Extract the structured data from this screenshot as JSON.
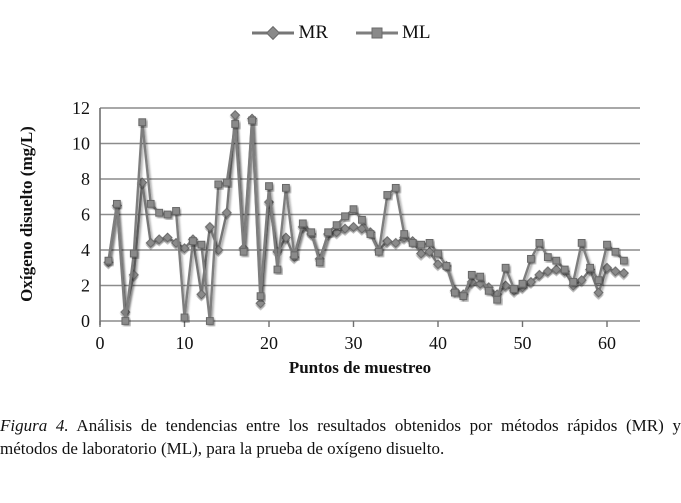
{
  "chart_data": {
    "type": "line",
    "title": "",
    "xlabel": "Puntos de muestreo",
    "ylabel": "Oxígeno disuelto (mg/L)",
    "x_ticks": [
      0,
      10,
      20,
      30,
      40,
      50,
      60
    ],
    "y_ticks": [
      0,
      2,
      4,
      6,
      8,
      10,
      12
    ],
    "ylim": [
      0,
      12
    ],
    "xlim": [
      0,
      64
    ],
    "grid": "horizontal",
    "legend_position": "top-center",
    "x": [
      1,
      2,
      3,
      4,
      5,
      6,
      7,
      8,
      9,
      10,
      11,
      12,
      13,
      14,
      15,
      16,
      17,
      18,
      19,
      20,
      21,
      22,
      23,
      24,
      25,
      26,
      27,
      28,
      29,
      30,
      31,
      32,
      33,
      34,
      35,
      36,
      37,
      38,
      39,
      40,
      41,
      42,
      43,
      44,
      45,
      46,
      47,
      48,
      49,
      50,
      51,
      52,
      53,
      54,
      55,
      56,
      57,
      58,
      59,
      60,
      61,
      62
    ],
    "series": [
      {
        "name": "MR",
        "marker": "diamond",
        "color": "#767676",
        "values": [
          3.3,
          6.5,
          0.5,
          2.6,
          7.8,
          4.4,
          4.6,
          4.7,
          4.4,
          4.1,
          4.6,
          1.5,
          5.3,
          4.0,
          6.1,
          11.6,
          4.1,
          11.4,
          1.0,
          6.7,
          3.9,
          4.7,
          3.6,
          5.3,
          4.9,
          3.5,
          4.9,
          5.0,
          5.2,
          5.3,
          5.2,
          5.0,
          4.0,
          4.5,
          4.4,
          4.7,
          4.5,
          3.8,
          3.9,
          3.2,
          3.1,
          1.7,
          1.5,
          2.2,
          2.1,
          1.9,
          1.5,
          2.0,
          1.7,
          1.9,
          2.2,
          2.6,
          2.8,
          2.9,
          2.8,
          2.0,
          2.3,
          2.9,
          1.6,
          3.0,
          2.8,
          2.7
        ]
      },
      {
        "name": "ML",
        "marker": "square",
        "color": "#7e7e7e",
        "values": [
          3.4,
          6.6,
          0.0,
          3.8,
          11.2,
          6.6,
          6.1,
          6.0,
          6.2,
          0.2,
          4.5,
          4.3,
          0.0,
          7.7,
          7.8,
          11.1,
          3.9,
          11.3,
          1.4,
          7.6,
          2.9,
          7.5,
          3.7,
          5.5,
          5.0,
          3.3,
          5.0,
          5.4,
          5.9,
          6.3,
          5.7,
          4.9,
          3.9,
          7.1,
          7.5,
          4.9,
          4.4,
          4.3,
          4.4,
          3.8,
          3.1,
          1.6,
          1.4,
          2.6,
          2.5,
          1.7,
          1.2,
          3.0,
          1.8,
          2.1,
          3.5,
          4.4,
          3.6,
          3.4,
          2.9,
          2.2,
          4.4,
          3.0,
          2.3,
          4.3,
          3.9,
          3.4
        ]
      }
    ]
  },
  "legend": {
    "items": [
      {
        "label": "MR"
      },
      {
        "label": "ML"
      }
    ]
  },
  "axes": {
    "y_title": "Oxígeno disuelto (mg/L)",
    "x_title": "Puntos de muestreo"
  },
  "caption": {
    "label": "Figura 4.",
    "text": " Análisis de tendencias entre los resultados obtenidos por métodos rápidos (MR) y métodos de laboratorio (ML), para la prueba de oxígeno disuelto."
  },
  "colors": {
    "line_mr": "#767676",
    "line_ml": "#7e7e7e",
    "gridline": "#8c8c8c",
    "axis": "#6f6f6f",
    "text": "#111111"
  }
}
